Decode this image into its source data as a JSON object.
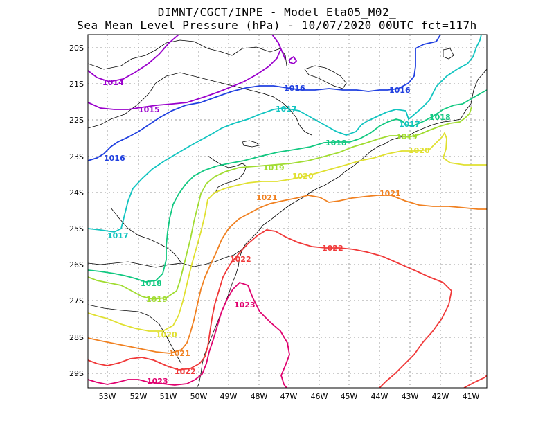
{
  "title": {
    "line1": "DIMNT/CGCT/INPE -  Model Eta05_M02_",
    "line2": "Sea Mean Level Pressure (hPa) - 10/07/2020 00UTC fct=117h"
  },
  "axes": {
    "lon_labels": [
      "53W",
      "52W",
      "51W",
      "50W",
      "49W",
      "48W",
      "47W",
      "46W",
      "45W",
      "44W",
      "43W",
      "42W",
      "41W"
    ],
    "lat_labels": [
      "20S",
      "21S",
      "22S",
      "23S",
      "24S",
      "25S",
      "26S",
      "27S",
      "28S",
      "29S"
    ]
  },
  "colors": {
    "c1014": "#9a00cc",
    "c1015": "#9a00cc",
    "c1016": "#2040e0",
    "c1017": "#10c4c0",
    "c1018": "#10c880",
    "c1019": "#a0dc30",
    "c1020": "#e0e030",
    "c1021": "#f08020",
    "c1022": "#f03838",
    "c1023": "#e0006e"
  },
  "contour_labels": [
    {
      "text": "1014",
      "color": "c1014"
    },
    {
      "text": "1015",
      "color": "c1015"
    },
    {
      "text": "1016",
      "color": "c1016"
    },
    {
      "text": "1016",
      "color": "c1016"
    },
    {
      "text": "1016",
      "color": "c1016"
    },
    {
      "text": "1017",
      "color": "c1017"
    },
    {
      "text": "1017",
      "color": "c1017"
    },
    {
      "text": "1017",
      "color": "c1017"
    },
    {
      "text": "1018",
      "color": "c1018"
    },
    {
      "text": "1018",
      "color": "c1018"
    },
    {
      "text": "1018",
      "color": "c1018"
    },
    {
      "text": "1019",
      "color": "c1019"
    },
    {
      "text": "1019",
      "color": "c1019"
    },
    {
      "text": "1019",
      "color": "c1019"
    },
    {
      "text": "1020",
      "color": "c1020"
    },
    {
      "text": "1020",
      "color": "c1020"
    },
    {
      "text": "1020",
      "color": "c1020"
    },
    {
      "text": "1021",
      "color": "c1021"
    },
    {
      "text": "1021",
      "color": "c1021"
    },
    {
      "text": "1021",
      "color": "c1021"
    },
    {
      "text": "1022",
      "color": "c1022"
    },
    {
      "text": "1022",
      "color": "c1022"
    },
    {
      "text": "1022",
      "color": "c1022"
    },
    {
      "text": "1023",
      "color": "c1023"
    },
    {
      "text": "1023",
      "color": "c1023"
    }
  ]
}
